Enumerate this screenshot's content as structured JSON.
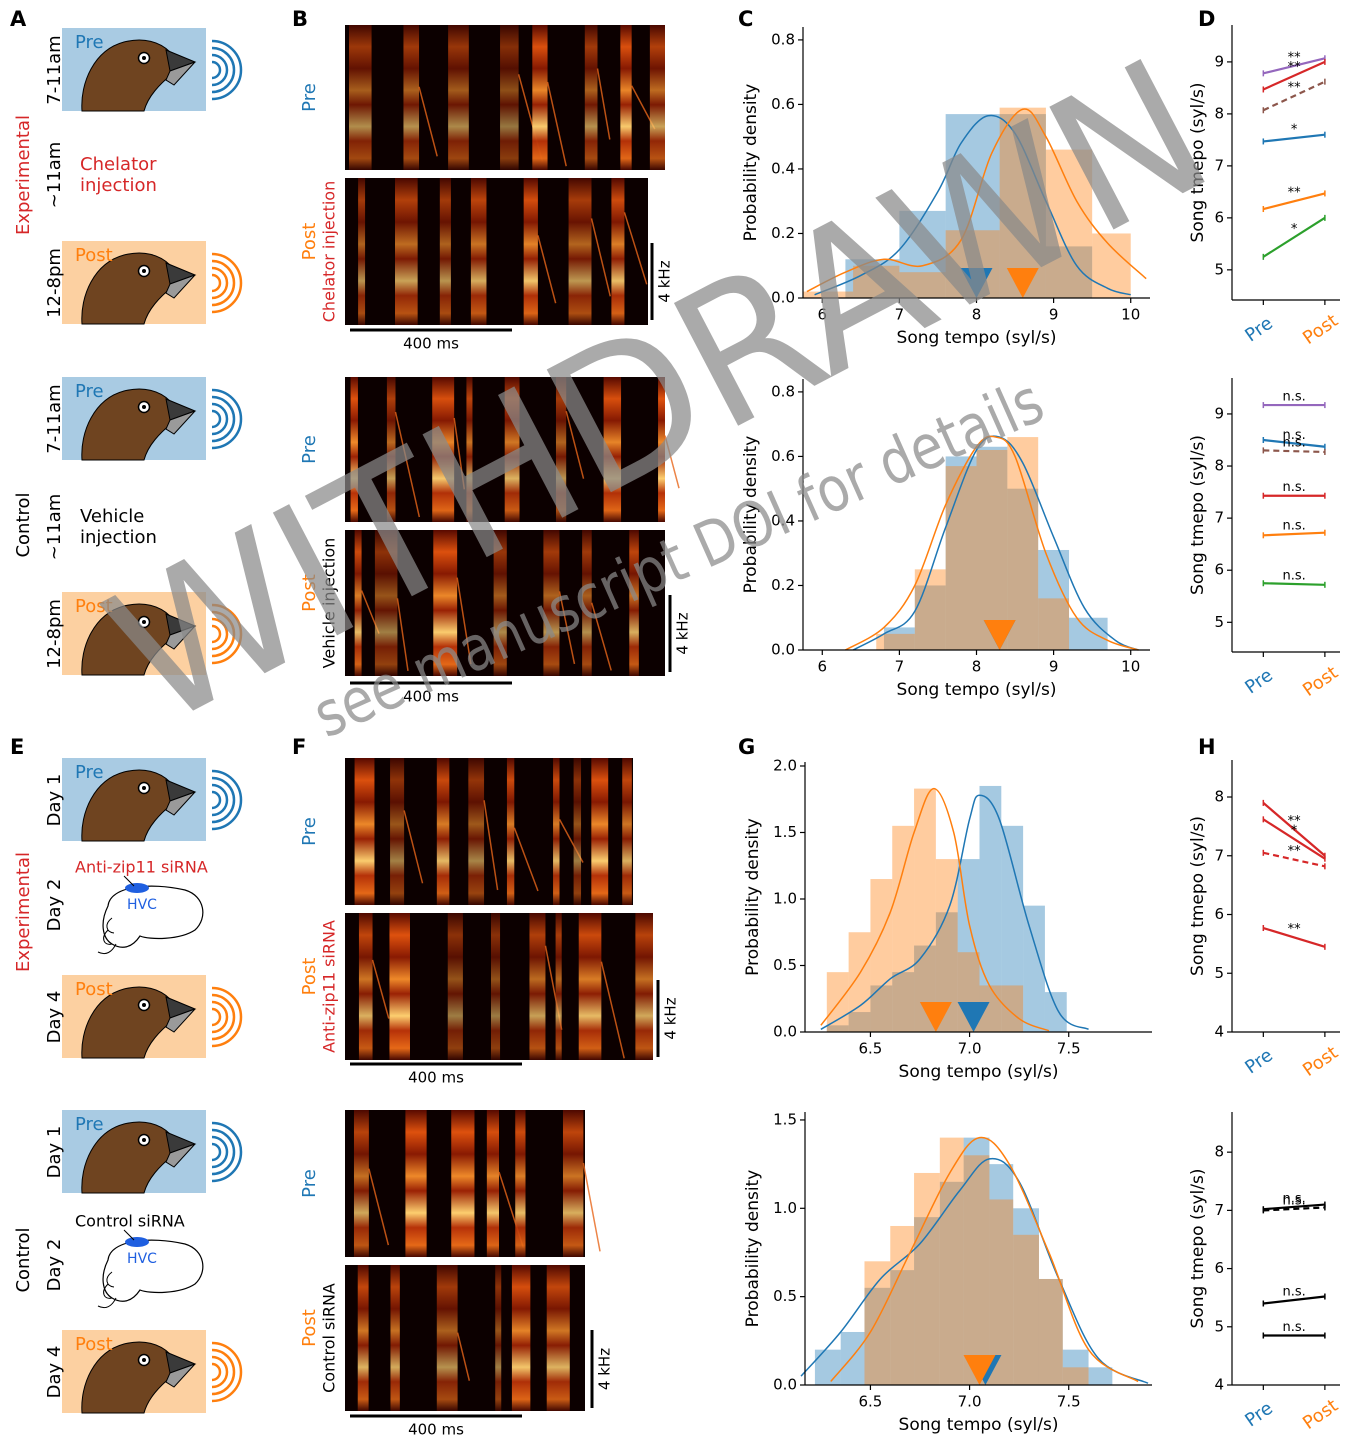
{
  "watermark": {
    "title": "WITHDRAWN",
    "note": "see manuscript DOI for details"
  },
  "colors": {
    "pre": "#1f77b4",
    "post": "#ff7f0e"
  },
  "schematics": [
    {
      "panel": "A",
      "groups": [
        {
          "label": "Experimental",
          "label_color": "#d62728",
          "pre": {
            "box": "Pre",
            "time": "7-11am"
          },
          "treatment": {
            "time": "~11am",
            "lines": [
              "Chelator",
              "injection"
            ],
            "color": "#d62728"
          },
          "post": {
            "box": "Post",
            "time": "12-8pm"
          }
        },
        {
          "label": "Control",
          "label_color": "#000000",
          "pre": {
            "box": "Pre",
            "time": "7-11am"
          },
          "treatment": {
            "time": "~11am",
            "lines": [
              "Vehicle",
              "injection"
            ],
            "color": "#000000"
          },
          "post": {
            "box": "Post",
            "time": "12-8pm"
          }
        }
      ]
    },
    {
      "panel": "E",
      "groups": [
        {
          "label": "Experimental",
          "label_color": "#d62728",
          "pre": {
            "box": "Pre",
            "time": "Day 1"
          },
          "treatment": {
            "time": "Day 2",
            "lines": [
              "Anti-zip11 siRNA"
            ],
            "region": "HVC",
            "color": "#d62728"
          },
          "post": {
            "box": "Post",
            "time": "Day 4"
          }
        },
        {
          "label": "Control",
          "label_color": "#000000",
          "pre": {
            "box": "Pre",
            "time": "Day 1"
          },
          "treatment": {
            "time": "Day 2",
            "lines": [
              "Control siRNA"
            ],
            "region": "HVC",
            "color": "#000000"
          },
          "post": {
            "box": "Post",
            "time": "Day 4"
          }
        }
      ]
    }
  ],
  "spectrograms": [
    {
      "panel": "B",
      "groups": [
        {
          "pre": "Pre",
          "post": "Post",
          "treatment": "Chelator injection",
          "treatment_color": "#d62728",
          "freq_scale": "4 kHz",
          "time_scale": "400 ms"
        },
        {
          "pre": "Pre",
          "post": "Post",
          "treatment": "Vehicle injection",
          "treatment_color": "#000000",
          "freq_scale": "4 kHz",
          "time_scale": "400 ms"
        }
      ]
    },
    {
      "panel": "F",
      "groups": [
        {
          "pre": "Pre",
          "post": "Post",
          "treatment": "Anti-zip11 siRNA",
          "treatment_color": "#d62728",
          "freq_scale": "4 kHz",
          "time_scale": "400 ms"
        },
        {
          "pre": "Pre",
          "post": "Post",
          "treatment": "Control siRNA",
          "treatment_color": "#000000",
          "freq_scale": "4 kHz",
          "time_scale": "400 ms"
        }
      ]
    }
  ],
  "chart_data": [
    {
      "type": "histogram",
      "panel": "C",
      "xlabel": "Song tempo (syl/s)",
      "ylabel": "Probability density",
      "xlim": [
        5.75,
        10.25
      ],
      "xticks": [
        6,
        7,
        8,
        9,
        10
      ],
      "ylim": [
        0,
        0.84
      ],
      "yticks": [
        {
          "value": 0,
          "label": "0.0"
        },
        0.2,
        0.4,
        0.6,
        0.8
      ],
      "series": [
        {
          "color": "#1f77b4",
          "bins": [
            6.3,
            7.0,
            7.6,
            8.3,
            8.9,
            9.5
          ],
          "values": [
            0.12,
            0.27,
            0.57,
            0.57,
            0.16
          ],
          "kde_x": [
            5.9,
            6.5,
            7.0,
            7.5,
            7.8,
            8.15,
            8.5,
            8.9,
            9.3,
            9.7,
            10.0
          ],
          "kde_y": [
            0.01,
            0.07,
            0.15,
            0.33,
            0.48,
            0.565,
            0.51,
            0.3,
            0.1,
            0.03,
            0.01
          ],
          "mean": 8.0
        },
        {
          "color": "#ff7f0e",
          "bins": [
            5.75,
            6.4,
            7.0,
            7.6,
            8.3,
            8.9,
            9.5,
            10.0
          ],
          "values": [
            0.02,
            0.1,
            0.08,
            0.21,
            0.59,
            0.46,
            0.2
          ],
          "kde_x": [
            5.8,
            6.3,
            6.8,
            7.3,
            7.8,
            8.2,
            8.6,
            8.9,
            9.3,
            9.7,
            10.2
          ],
          "kde_y": [
            0.02,
            0.08,
            0.12,
            0.1,
            0.18,
            0.45,
            0.585,
            0.5,
            0.3,
            0.17,
            0.06
          ],
          "mean": 8.6
        }
      ]
    },
    {
      "type": "histogram",
      "xlabel": "Song tempo (syl/s)",
      "ylabel": "Probability density",
      "xlim": [
        5.75,
        10.25
      ],
      "xticks": [
        6,
        7,
        8,
        9,
        10
      ],
      "ylim": [
        0,
        0.84
      ],
      "yticks": [
        {
          "value": 0,
          "label": "0.0"
        },
        0.2,
        0.4,
        0.6,
        0.8
      ],
      "series": [
        {
          "color": "#1f77b4",
          "bins": [
            6.8,
            7.2,
            7.6,
            8.0,
            8.4,
            8.8,
            9.2,
            9.7
          ],
          "values": [
            0.07,
            0.2,
            0.6,
            0.63,
            0.5,
            0.31,
            0.1
          ],
          "kde_x": [
            6.4,
            6.8,
            7.2,
            7.6,
            8.0,
            8.3,
            8.6,
            9.0,
            9.4,
            9.8,
            10.1
          ],
          "kde_y": [
            0,
            0.05,
            0.12,
            0.38,
            0.62,
            0.66,
            0.58,
            0.35,
            0.13,
            0.03,
            0
          ],
          "mean": 8.3
        },
        {
          "color": "#ff7f0e",
          "bins": [
            6.7,
            7.2,
            7.6,
            8.0,
            8.4,
            8.8,
            9.2
          ],
          "values": [
            0.05,
            0.25,
            0.57,
            0.62,
            0.66,
            0.16
          ],
          "kde_x": [
            6.3,
            6.8,
            7.2,
            7.6,
            8.0,
            8.25,
            8.5,
            8.9,
            9.3,
            9.7,
            10.1
          ],
          "kde_y": [
            0,
            0.07,
            0.2,
            0.45,
            0.63,
            0.66,
            0.6,
            0.3,
            0.1,
            0.03,
            0
          ],
          "mean": 8.3
        }
      ]
    },
    {
      "type": "histogram",
      "panel": "G",
      "xlabel": "Song tempo (syl/s)",
      "ylabel": "Probability density",
      "xlim": [
        6.17,
        7.92
      ],
      "xticks": [
        6.5,
        {
          "value": 7,
          "label": "7.0"
        },
        7.5
      ],
      "ylim": [
        0,
        2.03
      ],
      "yticks": [
        {
          "value": 0,
          "label": "0.0"
        },
        0.5,
        {
          "value": 1,
          "label": "1.0"
        },
        1.5,
        {
          "value": 2,
          "label": "2.0"
        }
      ],
      "series": [
        {
          "color": "#1f77b4",
          "bins": [
            6.28,
            6.39,
            6.5,
            6.61,
            6.72,
            6.83,
            6.94,
            7.05,
            7.16,
            7.27,
            7.38,
            7.49
          ],
          "values": [
            0.05,
            0.15,
            0.35,
            0.45,
            0.65,
            0.9,
            1.3,
            1.85,
            1.55,
            0.95,
            0.3
          ],
          "kde_x": [
            6.25,
            6.45,
            6.6,
            6.75,
            6.9,
            7.0,
            7.05,
            7.15,
            7.3,
            7.45,
            7.6
          ],
          "kde_y": [
            0.02,
            0.2,
            0.4,
            0.55,
            0.95,
            1.6,
            1.78,
            1.6,
            0.8,
            0.15,
            0.02
          ],
          "mean": 7.02
        },
        {
          "color": "#ff7f0e",
          "bins": [
            6.28,
            6.39,
            6.5,
            6.61,
            6.72,
            6.83,
            6.94,
            7.05,
            7.16,
            7.27
          ],
          "values": [
            0.45,
            0.75,
            1.15,
            1.55,
            1.83,
            1.3,
            0.6,
            0.35,
            0.35
          ],
          "kde_x": [
            6.25,
            6.45,
            6.6,
            6.72,
            6.82,
            6.92,
            7.0,
            7.1,
            7.25,
            7.4
          ],
          "kde_y": [
            0.05,
            0.45,
            0.9,
            1.5,
            1.83,
            1.5,
            0.8,
            0.35,
            0.1,
            0.01
          ],
          "mean": 6.83
        }
      ]
    },
    {
      "type": "histogram",
      "xlabel": "Song tempo (syl/s)",
      "ylabel": "Probability density",
      "xlim": [
        6.17,
        7.92
      ],
      "xticks": [
        6.5,
        {
          "value": 7,
          "label": "7.0"
        },
        7.5
      ],
      "ylim": [
        0,
        1.545
      ],
      "yticks": [
        {
          "value": 0,
          "label": "0.0"
        },
        0.5,
        {
          "value": 1,
          "label": "1.0"
        },
        1.5
      ],
      "series": [
        {
          "color": "#1f77b4",
          "bins": [
            6.22,
            6.35,
            6.47,
            6.6,
            6.72,
            6.85,
            6.97,
            7.1,
            7.22,
            7.35,
            7.47,
            7.6,
            7.72
          ],
          "values": [
            0.2,
            0.3,
            0.55,
            0.65,
            0.95,
            1.15,
            1.4,
            1.25,
            1.0,
            0.6,
            0.2,
            0.1
          ],
          "kde_x": [
            6.15,
            6.35,
            6.55,
            6.75,
            6.95,
            7.1,
            7.25,
            7.45,
            7.65,
            7.9
          ],
          "kde_y": [
            0.05,
            0.3,
            0.6,
            0.8,
            1.1,
            1.28,
            1.15,
            0.6,
            0.15,
            0.01
          ],
          "mean": 7.08
        },
        {
          "color": "#ff7f0e",
          "bins": [
            6.47,
            6.6,
            6.72,
            6.85,
            6.97,
            7.1,
            7.22,
            7.35,
            7.47,
            7.6
          ],
          "values": [
            0.7,
            0.9,
            1.2,
            1.4,
            1.3,
            1.05,
            0.85,
            0.6,
            0.1
          ],
          "kde_x": [
            6.3,
            6.5,
            6.7,
            6.9,
            7.05,
            7.2,
            7.4,
            7.6,
            7.85
          ],
          "kde_y": [
            0.02,
            0.3,
            0.75,
            1.2,
            1.4,
            1.25,
            0.75,
            0.2,
            0.02
          ],
          "mean": 7.05
        }
      ]
    },
    {
      "type": "line",
      "panel": "D",
      "ylabel": "Song tmepo (syl/s)",
      "categories": [
        "Pre",
        "Post"
      ],
      "category_colors": [
        "#1f77b4",
        "#ff7f0e"
      ],
      "ylim": [
        4.42,
        9.71
      ],
      "yticks": [
        5,
        6,
        7,
        8,
        9
      ],
      "series": [
        {
          "color": "#9467bd",
          "dashed": false,
          "values": [
            8.78,
            9.07
          ],
          "annotation": "**"
        },
        {
          "color": "#d62728",
          "dashed": false,
          "values": [
            8.47,
            9.0
          ],
          "annotation": "**"
        },
        {
          "color": "#8c564b",
          "dashed": true,
          "values": [
            8.07,
            8.62
          ],
          "annotation": "**"
        },
        {
          "color": "#1f77b4",
          "dashed": false,
          "values": [
            7.47,
            7.6
          ],
          "annotation": "*"
        },
        {
          "color": "#ff7f0e",
          "dashed": false,
          "values": [
            6.17,
            6.47
          ],
          "annotation": "**"
        },
        {
          "color": "#2ca02c",
          "dashed": false,
          "values": [
            5.25,
            6.0
          ],
          "annotation": "*"
        }
      ]
    },
    {
      "type": "line",
      "ylabel": "Song tmepo (syl/s)",
      "categories": [
        "Pre",
        "Post"
      ],
      "category_colors": [
        "#1f77b4",
        "#ff7f0e"
      ],
      "ylim": [
        4.43,
        9.69
      ],
      "yticks": [
        5,
        6,
        7,
        8,
        9
      ],
      "series": [
        {
          "color": "#9467bd",
          "dashed": false,
          "values": [
            9.17,
            9.17
          ],
          "annotation": "n.s."
        },
        {
          "color": "#1f77b4",
          "dashed": false,
          "values": [
            8.5,
            8.37
          ],
          "annotation": "n.s."
        },
        {
          "color": "#8c564b",
          "dashed": true,
          "values": [
            8.3,
            8.27
          ],
          "annotation": "n.s."
        },
        {
          "color": "#d62728",
          "dashed": false,
          "values": [
            7.43,
            7.43
          ],
          "annotation": "n.s."
        },
        {
          "color": "#ff7f0e",
          "dashed": false,
          "values": [
            6.67,
            6.72
          ],
          "annotation": "n.s."
        },
        {
          "color": "#2ca02c",
          "dashed": false,
          "values": [
            5.75,
            5.72
          ],
          "annotation": "n.s."
        }
      ]
    },
    {
      "type": "line",
      "panel": "H",
      "ylabel": "Song tmepo (syl/s)",
      "categories": [
        "Pre",
        "Post"
      ],
      "category_colors": [
        "#1f77b4",
        "#ff7f0e"
      ],
      "ylim": [
        4,
        8.63
      ],
      "yticks": [
        4,
        5,
        6,
        7,
        8
      ],
      "series": [
        {
          "color": "#d62728",
          "dashed": false,
          "values": [
            7.9,
            7.0
          ],
          "annotation": "**"
        },
        {
          "color": "#d62728",
          "dashed": false,
          "values": [
            7.62,
            6.95
          ],
          "annotation": "*"
        },
        {
          "color": "#d62728",
          "dashed": true,
          "values": [
            7.05,
            6.82
          ],
          "annotation": "**"
        },
        {
          "color": "#d62728",
          "dashed": false,
          "values": [
            5.77,
            5.45
          ],
          "annotation": "**"
        }
      ]
    },
    {
      "type": "line",
      "ylabel": "Song tmepo (syl/s)",
      "categories": [
        "Pre",
        "Post"
      ],
      "category_colors": [
        "#1f77b4",
        "#ff7f0e"
      ],
      "ylim": [
        4,
        8.69
      ],
      "yticks": [
        4,
        5,
        6,
        7,
        8
      ],
      "series": [
        {
          "color": "#000000",
          "dashed": false,
          "values": [
            7.02,
            7.1
          ],
          "annotation": "n.s."
        },
        {
          "color": "#000000",
          "dashed": true,
          "values": [
            7.0,
            7.05
          ],
          "annotation": "n.s."
        },
        {
          "color": "#000000",
          "dashed": false,
          "values": [
            5.4,
            5.52
          ],
          "annotation": "n.s."
        },
        {
          "color": "#000000",
          "dashed": false,
          "values": [
            4.85,
            4.85
          ],
          "annotation": "n.s."
        }
      ]
    }
  ]
}
